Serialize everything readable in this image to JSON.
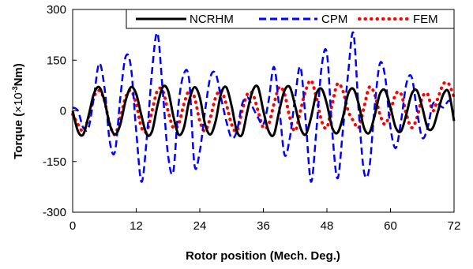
{
  "chart_data": {
    "type": "line",
    "xlabel": "Rotor position (Mech. Deg.)",
    "ylabel_main": "Torque (",
    "ylabel_times": "×10",
    "ylabel_exp": "-3",
    "ylabel_unit": "Nm)",
    "xlim": [
      0,
      72
    ],
    "ylim": [
      -300,
      300
    ],
    "xticks": [
      0,
      12,
      24,
      36,
      48,
      60,
      72
    ],
    "yticks": [
      300,
      150,
      0,
      -150,
      -300
    ],
    "grid": false,
    "legend_position": "top-right",
    "series": [
      {
        "name": "NCRHM",
        "color": "#000000",
        "style": "solid",
        "x": [
          0,
          1,
          2,
          3,
          4,
          5,
          6,
          7,
          8,
          9,
          10,
          11,
          12,
          13,
          14,
          15,
          16,
          17,
          18,
          19,
          20,
          21,
          22,
          23,
          24,
          25,
          26,
          27,
          28,
          29,
          30,
          31,
          32,
          33,
          34,
          35,
          36,
          37,
          38,
          39,
          40,
          41,
          42,
          43,
          44,
          45,
          46,
          47,
          48,
          49,
          50,
          51,
          52,
          53,
          54,
          55,
          56,
          57,
          58,
          59,
          60,
          61,
          62,
          63,
          64,
          65,
          66,
          67,
          68,
          69,
          70,
          71,
          72
        ],
        "y": [
          0,
          -60,
          -70,
          -15,
          50,
          70,
          30,
          -40,
          -70,
          -40,
          30,
          70,
          50,
          -15,
          -70,
          -60,
          15,
          70,
          60,
          -15,
          -70,
          -50,
          30,
          70,
          40,
          -40,
          -70,
          -30,
          50,
          70,
          15,
          -60,
          -70,
          0,
          60,
          70,
          0,
          -60,
          -70,
          0,
          60,
          70,
          15,
          -50,
          -70,
          -20,
          50,
          65,
          20,
          -50,
          -65,
          -20,
          50,
          65,
          20,
          -50,
          -65,
          -15,
          50,
          60,
          10,
          -50,
          -60,
          -10,
          50,
          60,
          10,
          -50,
          -50,
          0,
          50,
          55,
          -30
        ]
      },
      {
        "name": "CPM",
        "color": "#0000ff",
        "style": "dashed",
        "x": [
          0,
          1,
          2,
          3,
          4,
          5,
          6,
          7,
          8,
          9,
          10,
          11,
          12,
          13,
          14,
          15,
          16,
          17,
          18,
          19,
          20,
          21,
          22,
          23,
          24,
          25,
          26,
          27,
          28,
          29,
          30,
          31,
          32,
          33,
          34,
          35,
          36,
          37,
          38,
          39,
          40,
          41,
          42,
          43,
          44,
          45,
          46,
          47,
          48,
          49,
          50,
          51,
          52,
          53,
          54,
          55,
          56,
          57,
          58,
          59,
          60,
          61,
          62,
          63,
          64,
          65,
          66,
          67,
          68,
          69,
          70,
          71,
          72
        ],
        "y": [
          10,
          0,
          -50,
          -50,
          40,
          140,
          70,
          -90,
          -120,
          40,
          160,
          130,
          -60,
          -210,
          -80,
          120,
          230,
          60,
          -130,
          -180,
          20,
          110,
          90,
          -160,
          -120,
          0,
          100,
          110,
          40,
          -30,
          -80,
          -60,
          20,
          40,
          10,
          -20,
          -40,
          30,
          130,
          10,
          -130,
          -80,
          40,
          130,
          -30,
          -210,
          -60,
          130,
          170,
          -60,
          -200,
          -60,
          110,
          230,
          0,
          -180,
          -170,
          10,
          140,
          100,
          -50,
          -110,
          -30,
          80,
          100,
          0,
          -80,
          -50,
          20,
          20,
          10,
          30,
          20
        ]
      },
      {
        "name": "FEM",
        "color": "#ff0000",
        "style": "dotted",
        "x": [
          0,
          1,
          2,
          3,
          4,
          5,
          6,
          7,
          8,
          9,
          10,
          11,
          12,
          13,
          14,
          15,
          16,
          17,
          18,
          19,
          20,
          21,
          22,
          23,
          24,
          25,
          26,
          27,
          28,
          29,
          30,
          31,
          32,
          33,
          34,
          35,
          36,
          37,
          38,
          39,
          40,
          41,
          42,
          43,
          44,
          45,
          46,
          47,
          48,
          49,
          50,
          51,
          52,
          53,
          54,
          55,
          56,
          57,
          58,
          59,
          60,
          61,
          62,
          63,
          64,
          65,
          66,
          67,
          68,
          69,
          70,
          71,
          72
        ],
        "y": [
          -10,
          -40,
          -60,
          -20,
          40,
          60,
          30,
          -40,
          -70,
          -20,
          40,
          60,
          20,
          -50,
          -60,
          0,
          60,
          60,
          0,
          -50,
          -40,
          20,
          60,
          40,
          -30,
          -60,
          -20,
          40,
          60,
          20,
          -40,
          -60,
          0,
          50,
          50,
          0,
          -50,
          -40,
          20,
          70,
          50,
          -20,
          -60,
          0,
          60,
          90,
          40,
          -30,
          -50,
          20,
          80,
          60,
          0,
          -30,
          -50,
          10,
          70,
          50,
          -10,
          -40,
          0,
          50,
          50,
          -10,
          -50,
          -20,
          40,
          50,
          0,
          40,
          80,
          80,
          40
        ]
      }
    ]
  }
}
